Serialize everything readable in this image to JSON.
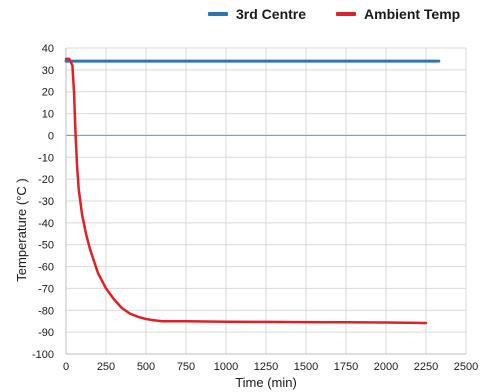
{
  "chart_data": {
    "type": "line",
    "title": "",
    "xlabel": "Time (min)",
    "ylabel": "Temperature (°C )",
    "xlim": [
      0,
      2500
    ],
    "ylim": [
      -100,
      40
    ],
    "xticks": [
      0,
      250,
      500,
      750,
      1000,
      1250,
      1500,
      1750,
      2000,
      2250,
      2500
    ],
    "yticks": [
      40,
      30,
      20,
      10,
      0,
      -10,
      -20,
      -30,
      -40,
      -50,
      -60,
      -70,
      -80,
      -90,
      -100
    ],
    "grid": true,
    "legend_position": "top",
    "series": [
      {
        "name": "3rd Centre",
        "color": "#2e75b6",
        "x": [
          0,
          250,
          500,
          750,
          1000,
          1250,
          1500,
          1750,
          2000,
          2250,
          2330
        ],
        "y": [
          34,
          34,
          34,
          34,
          34,
          34,
          34,
          34,
          34,
          34,
          34
        ]
      },
      {
        "name": "Ambient Temp",
        "color": "#e11f26",
        "x": [
          0,
          20,
          40,
          50,
          60,
          70,
          80,
          100,
          125,
          150,
          200,
          250,
          300,
          350,
          400,
          450,
          500,
          550,
          600,
          750,
          1000,
          1250,
          1500,
          1750,
          2000,
          2250
        ],
        "y": [
          35,
          35,
          32,
          20,
          0,
          -15,
          -25,
          -36,
          -45,
          -52,
          -63,
          -70,
          -75,
          -79,
          -81.5,
          -83,
          -84,
          -84.6,
          -85,
          -85,
          -85.2,
          -85.3,
          -85.4,
          -85.5,
          -85.6,
          -85.8
        ]
      }
    ]
  }
}
